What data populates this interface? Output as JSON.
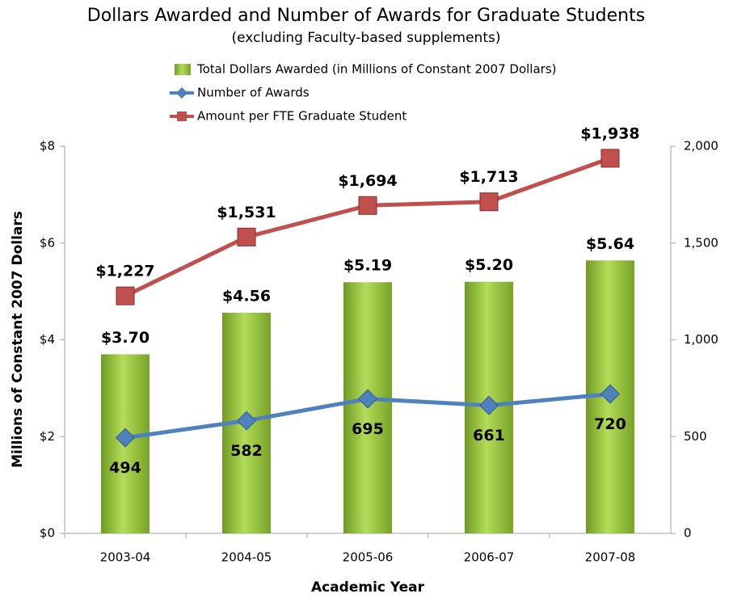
{
  "chart_data": {
    "type": "bar",
    "title": "Dollars Awarded and Number of Awards for Graduate Students",
    "subtitle": "(excluding Faculty-based supplements)",
    "x_label": "Academic Year",
    "y_label": "Millions of Constant 2007 Dollars",
    "categories": [
      "2003-04",
      "2004-05",
      "2005-06",
      "2006-07",
      "2007-08"
    ],
    "series": [
      {
        "name": "Total Dollars Awarded (in Millions of Constant 2007 Dollars)",
        "type": "bar",
        "color": "#8dc03a",
        "values": [
          3.7,
          4.56,
          5.19,
          5.2,
          5.64
        ],
        "value_labels": [
          "$3.70",
          "$4.56",
          "$5.19",
          "$5.20",
          "$5.64"
        ]
      },
      {
        "name": "Number of Awards",
        "type": "line",
        "axis": "y2",
        "color": "#4f81bd",
        "values": [
          494,
          582,
          695,
          661,
          720
        ]
      },
      {
        "name": "Amount per FTE Graduate Student",
        "type": "line",
        "axis": "y2",
        "color": "#c0504d",
        "values": [
          1227,
          1531,
          1694,
          1713,
          1938
        ],
        "value_labels": [
          "$1,227",
          "$1,531",
          "$1,694",
          "$1,713",
          "$1,938"
        ]
      }
    ],
    "ylim": [
      0,
      8
    ],
    "yticks": [
      {
        "value": 0,
        "label": "$0"
      },
      {
        "value": 2,
        "label": "$2"
      },
      {
        "value": 4,
        "label": "$4"
      },
      {
        "value": 6,
        "label": "$6"
      },
      {
        "value": 8,
        "label": "$8"
      }
    ],
    "y2lim": [
      0,
      2000
    ],
    "y2ticks": [
      0,
      500,
      {
        "value": 1000,
        "label": "1,000"
      },
      {
        "value": 1500,
        "label": "1,500"
      },
      {
        "value": 2000,
        "label": "2,000"
      }
    ],
    "grid": false,
    "legend": "top"
  }
}
